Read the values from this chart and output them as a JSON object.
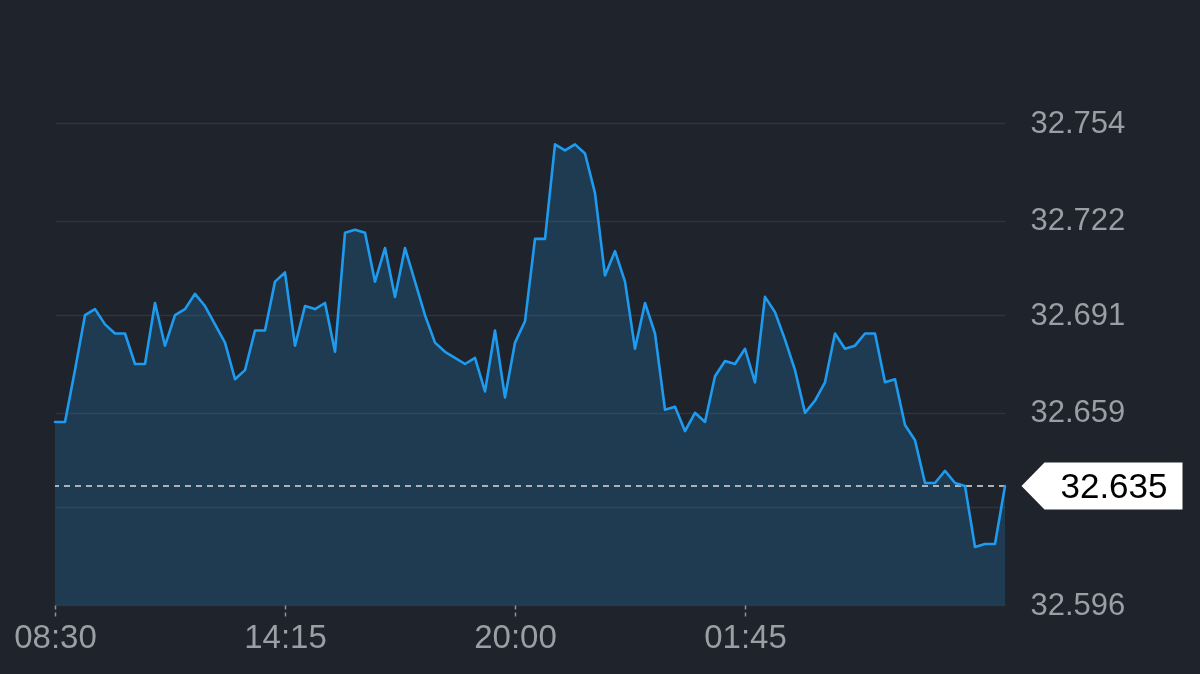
{
  "chart_data": {
    "type": "area",
    "color": "#1e9bef",
    "categories": [
      "08:30",
      null,
      null,
      null,
      null,
      null,
      null,
      null,
      null,
      null,
      null,
      null,
      null,
      null,
      null,
      null,
      null,
      null,
      null,
      null,
      null,
      null,
      null,
      "14:15",
      null,
      null,
      null,
      null,
      null,
      null,
      null,
      null,
      null,
      null,
      null,
      null,
      null,
      null,
      null,
      null,
      null,
      null,
      null,
      null,
      null,
      null,
      "20:00",
      null,
      null,
      null,
      null,
      null,
      null,
      null,
      null,
      null,
      null,
      null,
      null,
      null,
      null,
      null,
      null,
      null,
      null,
      null,
      null,
      null,
      null,
      "01:45",
      null,
      null,
      null,
      null,
      null,
      null,
      null,
      null,
      null,
      null,
      null,
      null,
      null,
      null,
      null,
      null,
      null,
      null,
      null,
      null,
      null,
      null,
      null,
      null,
      null,
      null
    ],
    "values": [
      32.656,
      32.656,
      32.673,
      32.691,
      32.693,
      32.688,
      32.685,
      32.685,
      32.675,
      32.675,
      32.695,
      32.681,
      32.691,
      32.693,
      32.698,
      32.694,
      32.688,
      32.682,
      32.67,
      32.673,
      32.686,
      32.686,
      32.702,
      32.705,
      32.681,
      32.694,
      32.693,
      32.695,
      32.679,
      32.718,
      32.719,
      32.718,
      32.702,
      32.713,
      32.697,
      32.713,
      32.702,
      32.691,
      32.682,
      32.679,
      32.677,
      32.675,
      32.677,
      32.666,
      32.686,
      32.664,
      32.682,
      32.689,
      32.716,
      32.716,
      32.747,
      32.745,
      32.747,
      32.744,
      32.731,
      32.704,
      32.712,
      32.702,
      32.68,
      32.695,
      32.685,
      32.66,
      32.661,
      32.653,
      32.659,
      32.656,
      32.671,
      32.676,
      32.675,
      32.68,
      32.669,
      32.697,
      32.692,
      32.683,
      32.673,
      32.659,
      32.663,
      32.669,
      32.685,
      32.68,
      32.681,
      32.685,
      32.685,
      32.669,
      32.67,
      32.655,
      32.65,
      32.636,
      32.636,
      32.64,
      32.636,
      32.635,
      32.615,
      32.616,
      32.616,
      32.635
    ],
    "ylim": [
      32.596,
      32.754
    ],
    "yticks": [
      32.596,
      {
        "value": 32.628,
        "label": null
      },
      32.659,
      32.691,
      32.722,
      32.754
    ],
    "grid": "y",
    "ref_lines": [
      {
        "axis": "y",
        "value": 32.635,
        "label": "32.635",
        "color": "#aeb1b6",
        "line_style": "dashed"
      }
    ]
  }
}
